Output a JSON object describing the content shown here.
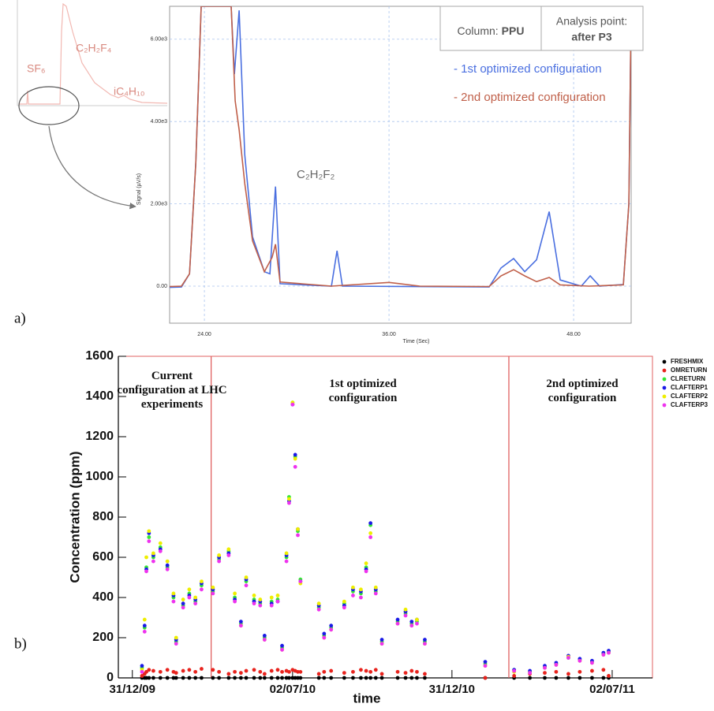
{
  "chart_data": [
    {
      "type": "line",
      "panel_label": "a)",
      "xlabel": "Time (Sec)",
      "ylabel": "Signal (µV/s)",
      "xlim": [
        21.74,
        51.74
      ],
      "ylim": [
        -900,
        6800
      ],
      "xticks": [
        {
          "value": 24,
          "label": "24.00"
        },
        {
          "value": 36,
          "label": "36.00"
        },
        {
          "value": 48,
          "label": "48.00"
        }
      ],
      "yticks": [
        {
          "value": 0,
          "label": "0.00"
        },
        {
          "value": 2000,
          "label": "2.00e3"
        },
        {
          "value": 4000,
          "label": "4.00e3"
        },
        {
          "value": 6000,
          "label": "6.00e3"
        }
      ],
      "grid": true,
      "column_label": "Column:",
      "column_value": "PPU",
      "analysis_label": "Analysis point:",
      "analysis_value": "after P3",
      "peak_label": "C₂H₂F₂",
      "inset_labels": [
        "SF₆",
        "C₂H₂F₄",
        "iC₄H₁₀"
      ],
      "series": [
        {
          "name": "- 1st optimized configuration",
          "color": "#4a6fe0",
          "x": [
            21.74,
            22.51,
            23.03,
            23.44,
            23.79,
            25.74,
            25.95,
            26.26,
            26.62,
            27.13,
            27.9,
            28.26,
            28.62,
            28.92,
            32.26,
            32.62,
            32.97,
            42.51,
            43.28,
            44.1,
            44.82,
            45.59,
            46.41,
            47.13,
            48.5,
            49.08,
            49.69,
            51.23,
            51.59,
            51.74
          ],
          "values": [
            -30,
            -20,
            300,
            3000,
            6800,
            6800,
            5150,
            6700,
            3200,
            1200,
            350,
            300,
            2420,
            60,
            0,
            860,
            0,
            -20,
            440,
            670,
            350,
            640,
            1810,
            150,
            0,
            250,
            0,
            40,
            2000,
            6800
          ]
        },
        {
          "name": "- 2nd optimized configuration",
          "color": "#c0604a",
          "x": [
            21.74,
            22.51,
            23.03,
            23.44,
            23.79,
            25.74,
            26.0,
            26.26,
            26.62,
            27.13,
            27.9,
            28.4,
            28.62,
            28.92,
            32.26,
            36.0,
            38.0,
            42.51,
            43.28,
            44.1,
            44.82,
            45.59,
            46.41,
            47.13,
            49.0,
            51.23,
            51.59,
            51.74
          ],
          "values": [
            -10,
            0,
            300,
            3000,
            6800,
            6800,
            4500,
            3800,
            2500,
            1100,
            350,
            700,
            1020,
            100,
            0,
            90,
            0,
            -10,
            250,
            400,
            250,
            110,
            210,
            30,
            0,
            30,
            2000,
            6800
          ]
        }
      ]
    },
    {
      "type": "scatter",
      "panel_label": "b)",
      "xlabel": "time",
      "ylabel": "Concentration (ppm)",
      "xlim": [
        "2009-12-15",
        "2011-08-17"
      ],
      "ylim": [
        0,
        1600
      ],
      "xticks": [
        {
          "value": "2009-12-31",
          "label": "31/12/09"
        },
        {
          "value": "2010-07-02",
          "label": "02/07/10"
        },
        {
          "value": "2010-12-31",
          "label": "31/12/10"
        },
        {
          "value": "2011-07-02",
          "label": "02/07/11"
        }
      ],
      "yticks": [
        0,
        200,
        400,
        600,
        800,
        1000,
        1200,
        1400,
        1600
      ],
      "vlines": [
        "2010-03-31",
        "2011-03-06"
      ],
      "annotations": [
        "Current configuration at LHC experiments",
        "1st optimized configuration",
        "2nd optimized configuration"
      ],
      "x": [
        "2010-01-11",
        "2010-01-14",
        "2010-01-16",
        "2010-01-19",
        "2010-01-24",
        "2010-02-01",
        "2010-02-09",
        "2010-02-16",
        "2010-02-19",
        "2010-02-27",
        "2010-03-06",
        "2010-03-13",
        "2010-03-20",
        "2010-04-02",
        "2010-04-09",
        "2010-04-20",
        "2010-04-27",
        "2010-05-04",
        "2010-05-10",
        "2010-05-19",
        "2010-05-26",
        "2010-05-31",
        "2010-06-08",
        "2010-06-15",
        "2010-06-20",
        "2010-06-25",
        "2010-06-28",
        "2010-07-02",
        "2010-07-05",
        "2010-07-08",
        "2010-07-11",
        "2010-08-01",
        "2010-08-07",
        "2010-08-15",
        "2010-08-30",
        "2010-09-09",
        "2010-09-18",
        "2010-09-24",
        "2010-09-29",
        "2010-10-05",
        "2010-10-12",
        "2010-10-30",
        "2010-11-08",
        "2010-11-15",
        "2010-11-21",
        "2010-11-30",
        "2011-02-07",
        "2011-03-12",
        "2011-03-30",
        "2011-04-16",
        "2011-04-29",
        "2011-05-13",
        "2011-05-26",
        "2011-06-09",
        "2011-06-22",
        "2011-06-28"
      ],
      "series": [
        {
          "name": "FRESHMIX",
          "color": "#000000",
          "values": [
            0,
            0,
            0,
            0,
            0,
            0,
            0,
            0,
            0,
            0,
            0,
            0,
            0,
            0,
            0,
            0,
            0,
            0,
            0,
            0,
            0,
            0,
            0,
            0,
            0,
            0,
            0,
            0,
            0,
            0,
            0,
            0,
            0,
            0,
            0,
            0,
            0,
            0,
            0,
            0,
            0,
            0,
            0,
            0,
            0,
            0,
            0,
            0,
            0,
            0,
            0,
            0,
            0,
            0,
            0,
            0
          ]
        },
        {
          "name": "OMRETURN",
          "color": "#e8231d",
          "values": [
            10,
            20,
            30,
            40,
            35,
            30,
            40,
            30,
            25,
            35,
            40,
            30,
            45,
            40,
            30,
            20,
            30,
            25,
            35,
            40,
            30,
            20,
            35,
            40,
            30,
            35,
            30,
            40,
            35,
            30,
            30,
            20,
            30,
            35,
            25,
            30,
            40,
            35,
            30,
            40,
            20,
            30,
            25,
            35,
            30,
            20,
            0,
            10,
            20,
            25,
            30,
            20,
            30,
            35,
            40,
            10
          ]
        },
        {
          "name": "CLRETURN",
          "color": "#33e633",
          "values": [
            50,
            250,
            550,
            700,
            600,
            650,
            550,
            400,
            180,
            360,
            420,
            380,
            460,
            430,
            590,
            630,
            400,
            270,
            480,
            390,
            370,
            200,
            380,
            390,
            150,
            600,
            900,
            1370,
            1100,
            730,
            490,
            350,
            210,
            250,
            370,
            430,
            420,
            550,
            760,
            430,
            180,
            280,
            320,
            270,
            280,
            180,
            70,
            40,
            30,
            55,
            70,
            100,
            90,
            80,
            120,
            130
          ]
        },
        {
          "name": "CLAFTERP1",
          "color": "#1a1ae6",
          "values": [
            60,
            260,
            540,
            720,
            610,
            640,
            560,
            410,
            190,
            370,
            410,
            390,
            470,
            440,
            600,
            620,
            390,
            280,
            490,
            380,
            380,
            210,
            370,
            380,
            160,
            610,
            880,
            1360,
            1110,
            740,
            480,
            360,
            220,
            260,
            360,
            440,
            430,
            540,
            770,
            440,
            190,
            290,
            330,
            280,
            290,
            190,
            80,
            40,
            35,
            60,
            75,
            110,
            95,
            85,
            125,
            135
          ]
        },
        {
          "name": "CLAFTERP2",
          "color": "#eeee00",
          "values": [
            40,
            290,
            600,
            730,
            620,
            670,
            580,
            420,
            200,
            390,
            440,
            400,
            480,
            450,
            610,
            640,
            420,
            260,
            500,
            410,
            390,
            190,
            400,
            410,
            140,
            620,
            890,
            1370,
            1090,
            740,
            470,
            370,
            200,
            240,
            380,
            450,
            440,
            570,
            720,
            450,
            170,
            270,
            340,
            260,
            290,
            170,
            60,
            30,
            25,
            50,
            65,
            105,
            85,
            75,
            115,
            125
          ]
        },
        {
          "name": "CLAFTERP3",
          "color": "#ee33ee",
          "values": [
            30,
            230,
            530,
            680,
            580,
            630,
            540,
            380,
            170,
            350,
            400,
            370,
            440,
            420,
            580,
            610,
            380,
            260,
            460,
            370,
            360,
            190,
            360,
            380,
            140,
            580,
            870,
            1360,
            1050,
            710,
            480,
            340,
            200,
            240,
            350,
            410,
            400,
            530,
            700,
            420,
            170,
            270,
            310,
            260,
            270,
            170,
            60,
            35,
            25,
            50,
            65,
            100,
            85,
            75,
            115,
            125
          ]
        }
      ]
    }
  ]
}
